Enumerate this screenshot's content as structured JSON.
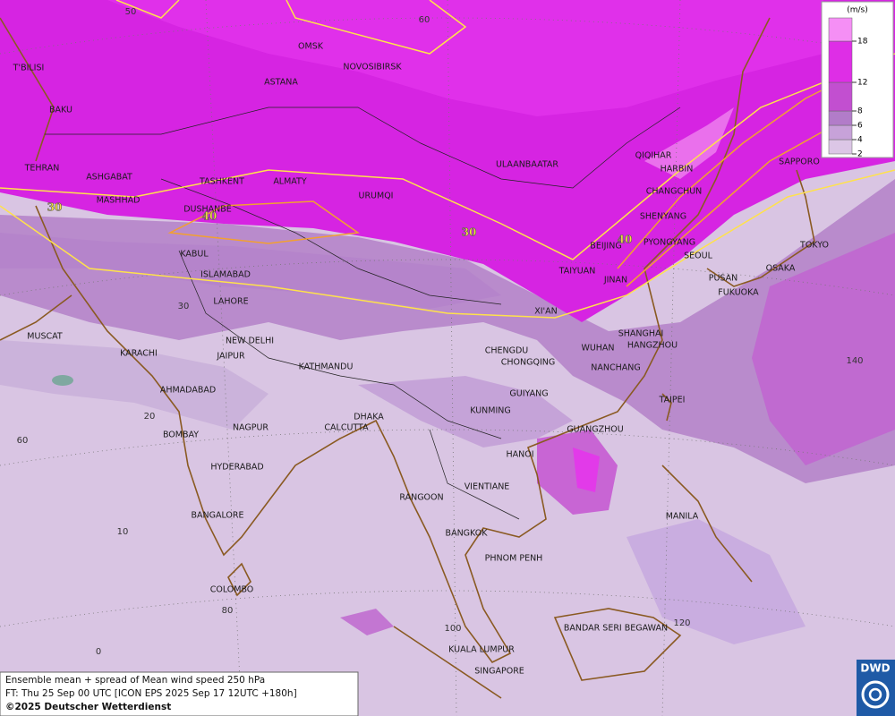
{
  "legend": {
    "unit": "(m/s)",
    "levels": [
      2,
      4,
      6,
      8,
      12,
      18
    ],
    "colors": [
      "#dcc6e6",
      "#c7a2d9",
      "#b27cc9",
      "#c24fd0",
      "#de2ee6",
      "#f58ff5"
    ]
  },
  "cities": [
    "OMSK",
    "NOVOSIBIRSK",
    "ASTANA",
    "T'BILISI",
    "BAKU",
    "TEHRAN",
    "ASHGABAT",
    "MASHHAD",
    "TASHKENT",
    "ALMATY",
    "DUSHANBE",
    "URUMQI",
    "ULAANBAATAR",
    "QIQIHAR",
    "HARBIN",
    "CHANGCHUN",
    "SHENYANG",
    "BEIJING",
    "PYONGYANG",
    "SEOUL",
    "TAIYUAN",
    "JINAN",
    "PUSAN",
    "FUKUOKA",
    "OSAKA",
    "TOKYO",
    "SAPPORO",
    "KABUL",
    "ISLAMABAD",
    "LAHORE",
    "XI'AN",
    "MUSCAT",
    "KARACHI",
    "NEW DELHI",
    "JAIPUR",
    "KATHMANDU",
    "CHENGDU",
    "CHONGQING",
    "WUHAN",
    "SHANGHAI",
    "HANGZHOU",
    "NANCHANG",
    "AHMADABAD",
    "GUIYANG",
    "TAIPEI",
    "KUNMING",
    "DHAKA",
    "CALCUTTA",
    "NAGPUR",
    "BOMBAY",
    "GUANGZHOU",
    "HANOI",
    "HYDERABAD",
    "VIENTIANE",
    "RANGOON",
    "MANILA",
    "BANGALORE",
    "BANGKOK",
    "PHNOM PENH",
    "COLOMBO",
    "BANDAR SERI BEGAWAN",
    "KUALA LUMPUR",
    "SINGAPORE"
  ],
  "contour_labels": [
    30,
    40,
    30,
    40
  ],
  "grid_labels": [
    50,
    60,
    30,
    20,
    60,
    10,
    80,
    0,
    100,
    120,
    140
  ],
  "info": [
    "Ensemble mean + spread of Mean wind speed 250 hPa",
    "FT: Thu 25 Sep 00 UTC [ICON EPS 2025 Sep 17 12UTC +180h]",
    "©2025 Deutscher Wetterdienst"
  ],
  "logo": "DWD"
}
